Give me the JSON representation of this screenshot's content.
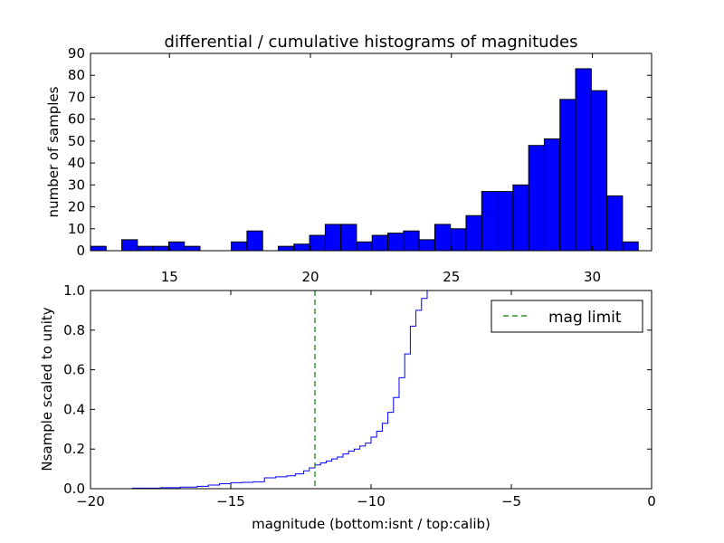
{
  "figure": {
    "title": "differential / cumulative histograms of magnitudes"
  },
  "chart_data": [
    {
      "type": "bar",
      "ylabel": "number of samples",
      "xlim": [
        12.2,
        32.1
      ],
      "ylim": [
        0,
        90
      ],
      "xticks": [
        "15",
        "20",
        "25",
        "30"
      ],
      "yticks": [
        "0",
        "10",
        "20",
        "30",
        "40",
        "50",
        "60",
        "70",
        "80",
        "90"
      ],
      "tick_position": "top-of-subplot-below",
      "bar_color": "#0000ff",
      "bin_width": 0.555,
      "bin_start": 12.2,
      "values": [
        2,
        0,
        5,
        2,
        2,
        4,
        2,
        0,
        0,
        4,
        9,
        0,
        2,
        3,
        7,
        12,
        12,
        4,
        7,
        8,
        9,
        5,
        12,
        10,
        16,
        27,
        27,
        30,
        48,
        51,
        69,
        83,
        73,
        25,
        4
      ]
    },
    {
      "type": "line",
      "style": "step",
      "xlabel": "magnitude (bottom:isnt / top:calib)",
      "ylabel": "Nsample scaled to unity",
      "xlim": [
        -20,
        0
      ],
      "ylim": [
        0,
        1.0
      ],
      "xticks": [
        "−20",
        "−15",
        "−10",
        "−5",
        "0"
      ],
      "yticks": [
        "0.0",
        "0.2",
        "0.4",
        "0.6",
        "0.8",
        "1.0"
      ],
      "series": [
        {
          "color": "#0000ff",
          "x": [
            -20,
            -18.5,
            -17.5,
            -16.8,
            -16.2,
            -15.8,
            -15.4,
            -15.0,
            -14.6,
            -14.2,
            -13.8,
            -13.4,
            -13.0,
            -12.7,
            -12.4,
            -12.2,
            -12.0,
            -11.8,
            -11.6,
            -11.4,
            -11.2,
            -11.0,
            -10.8,
            -10.6,
            -10.4,
            -10.2,
            -10.0,
            -9.8,
            -9.6,
            -9.4,
            -9.2,
            -9.0,
            -8.8,
            -8.6,
            -8.4,
            -8.2,
            -8.0,
            -7.8,
            -7.6
          ],
          "y": [
            0.0,
            0.003,
            0.005,
            0.008,
            0.012,
            0.018,
            0.025,
            0.03,
            0.032,
            0.035,
            0.055,
            0.06,
            0.065,
            0.075,
            0.09,
            0.105,
            0.12,
            0.13,
            0.14,
            0.15,
            0.16,
            0.175,
            0.19,
            0.2,
            0.215,
            0.23,
            0.26,
            0.29,
            0.33,
            0.385,
            0.46,
            0.56,
            0.68,
            0.82,
            0.9,
            0.96,
            1.0,
            1.0,
            1.0
          ]
        }
      ],
      "vlines": [
        {
          "x": -12,
          "color": "#008000",
          "style": "dashed",
          "name": "mag limit"
        }
      ],
      "legend": {
        "placement": "top-right",
        "entries": [
          "mag limit"
        ]
      }
    }
  ]
}
